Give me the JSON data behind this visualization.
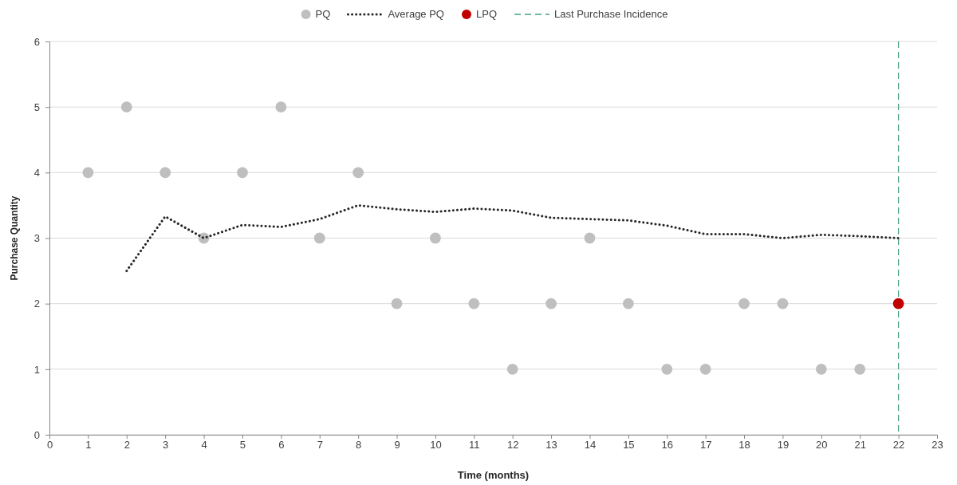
{
  "chart_data": {
    "type": "scatter",
    "xlabel": "Time (months)",
    "ylabel": "Purchase Quantity",
    "xlim": [
      0,
      23
    ],
    "xticks": [
      0,
      1,
      2,
      3,
      4,
      5,
      6,
      7,
      8,
      9,
      10,
      11,
      12,
      13,
      14,
      15,
      16,
      17,
      18,
      19,
      20,
      21,
      22,
      23
    ],
    "ylim": [
      0,
      6
    ],
    "yticks": [
      0,
      1,
      2,
      3,
      4,
      5,
      6
    ],
    "grid": "y",
    "legend": "top",
    "series": [
      {
        "name": "PQ",
        "marker": "circle",
        "color": "#bfbfbf",
        "x": [
          1,
          2,
          3,
          4,
          5,
          6,
          7,
          8,
          9,
          10,
          11,
          12,
          13,
          14,
          15,
          16,
          17,
          18,
          19,
          20,
          21
        ],
        "values": [
          4,
          5,
          4,
          3,
          4,
          5,
          3,
          4,
          2,
          3,
          2,
          1,
          2,
          3,
          2,
          1,
          1,
          2,
          2,
          1,
          1
        ]
      },
      {
        "name": "Average PQ",
        "type": "line",
        "marker": "none",
        "line_style": "dotted",
        "color": "#262626",
        "x": [
          2,
          3,
          4,
          5,
          6,
          7,
          8,
          9,
          10,
          11,
          12,
          13,
          14,
          15,
          16,
          17,
          18,
          19,
          20,
          21,
          22
        ],
        "values": [
          2.5,
          3.33,
          3.0,
          3.2,
          3.17,
          3.29,
          3.5,
          3.44,
          3.4,
          3.45,
          3.42,
          3.31,
          3.29,
          3.27,
          3.19,
          3.06,
          3.06,
          3.0,
          3.05,
          3.03,
          3.0
        ]
      },
      {
        "name": "LPQ",
        "type": "scatter",
        "marker": "circle",
        "color": "#c00000",
        "x": [
          22
        ],
        "values": [
          2
        ]
      }
    ],
    "ref_lines": [
      {
        "axis": "x",
        "value": 22,
        "label": "Last Purchase Incidence",
        "color": "#4a9e8a",
        "line_style": "dashed"
      }
    ]
  }
}
